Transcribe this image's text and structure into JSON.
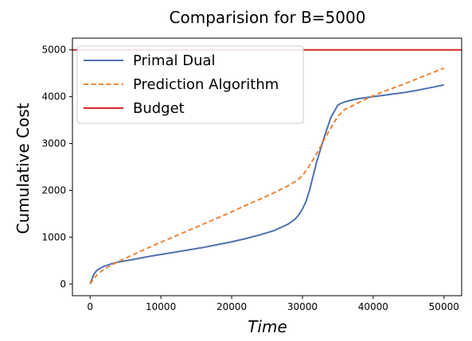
{
  "chart_data": {
    "type": "line",
    "title": "Comparision for B=5000",
    "xlabel": "Time",
    "ylabel": "Cumulative Cost",
    "xlim": [
      -2500,
      52500
    ],
    "ylim": [
      -250,
      5250
    ],
    "xticks": [
      0,
      10000,
      20000,
      30000,
      40000,
      50000
    ],
    "yticks": [
      0,
      1000,
      2000,
      3000,
      4000,
      5000
    ],
    "grid": false,
    "legend_position": "top-left",
    "series": [
      {
        "name": "Primal Dual",
        "color": "#4c72b0",
        "style": "solid",
        "x": [
          0,
          500,
          1000,
          2000,
          3000,
          4000,
          6000,
          8000,
          10000,
          12000,
          14000,
          16000,
          18000,
          20000,
          22000,
          24000,
          26000,
          28000,
          29000,
          29500,
          30000,
          30500,
          31000,
          32000,
          33000,
          34000,
          35000,
          35500,
          36000,
          37000,
          38000,
          40000,
          42000,
          44000,
          46000,
          48000,
          50000
        ],
        "y": [
          0,
          200,
          300,
          380,
          430,
          470,
          520,
          580,
          630,
          680,
          730,
          780,
          840,
          900,
          970,
          1050,
          1140,
          1280,
          1390,
          1480,
          1600,
          1760,
          2000,
          2600,
          3100,
          3550,
          3820,
          3860,
          3890,
          3930,
          3960,
          4000,
          4040,
          4080,
          4130,
          4190,
          4250
        ]
      },
      {
        "name": "Prediction Algorithm",
        "color": "#ee8538",
        "style": "dashed",
        "x": [
          0,
          500,
          1000,
          2000,
          3000,
          4000,
          6000,
          8000,
          10000,
          12000,
          14000,
          16000,
          18000,
          20000,
          22000,
          24000,
          26000,
          28000,
          29000,
          30000,
          31000,
          32000,
          33000,
          34000,
          35000,
          36000,
          37000,
          38000,
          40000,
          42000,
          44000,
          46000,
          48000,
          50000
        ],
        "y": [
          0,
          110,
          200,
          320,
          400,
          480,
          620,
          760,
          890,
          1020,
          1150,
          1280,
          1410,
          1540,
          1680,
          1810,
          1950,
          2100,
          2190,
          2310,
          2530,
          2780,
          3060,
          3330,
          3580,
          3730,
          3800,
          3880,
          4020,
          4140,
          4250,
          4370,
          4490,
          4610
        ]
      },
      {
        "name": "Budget",
        "color": "#d62728",
        "style": "solid",
        "x": [
          -2500,
          52500
        ],
        "y": [
          5000,
          5000
        ]
      }
    ]
  }
}
